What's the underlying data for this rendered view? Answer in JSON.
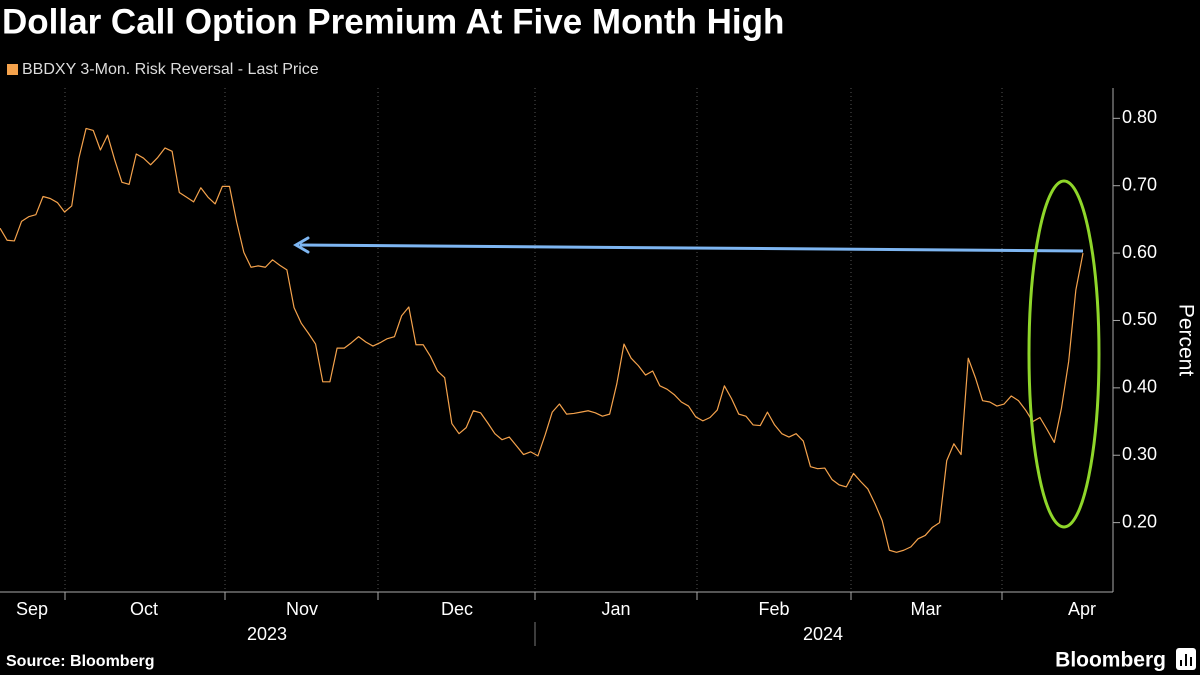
{
  "chart_data": {
    "type": "line",
    "title": "Dollar Call Option Premium At Five Month High",
    "series": [
      {
        "name": "BBDXY 3-Mon. Risk Reversal - Last Price",
        "color": "#f4a24c",
        "values": [
          0.637,
          0.619,
          0.618,
          0.647,
          0.654,
          0.657,
          0.684,
          0.681,
          0.675,
          0.661,
          0.67,
          0.741,
          0.785,
          0.782,
          0.753,
          0.775,
          0.738,
          0.705,
          0.702,
          0.747,
          0.741,
          0.731,
          0.742,
          0.756,
          0.751,
          0.69,
          0.683,
          0.676,
          0.697,
          0.683,
          0.673,
          0.699,
          0.699,
          0.646,
          0.601,
          0.579,
          0.581,
          0.579,
          0.59,
          0.582,
          0.575,
          0.519,
          0.496,
          0.481,
          0.465,
          0.409,
          0.409,
          0.459,
          0.459,
          0.467,
          0.476,
          0.468,
          0.462,
          0.467,
          0.473,
          0.476,
          0.507,
          0.52,
          0.464,
          0.464,
          0.447,
          0.425,
          0.415,
          0.347,
          0.332,
          0.341,
          0.366,
          0.363,
          0.348,
          0.332,
          0.323,
          0.327,
          0.314,
          0.301,
          0.305,
          0.299,
          0.33,
          0.364,
          0.376,
          0.361,
          0.362,
          0.364,
          0.366,
          0.363,
          0.358,
          0.361,
          0.406,
          0.465,
          0.444,
          0.433,
          0.419,
          0.425,
          0.403,
          0.398,
          0.39,
          0.379,
          0.373,
          0.357,
          0.351,
          0.356,
          0.367,
          0.403,
          0.384,
          0.361,
          0.358,
          0.345,
          0.344,
          0.364,
          0.345,
          0.332,
          0.327,
          0.332,
          0.321,
          0.283,
          0.28,
          0.281,
          0.264,
          0.256,
          0.253,
          0.273,
          0.261,
          0.25,
          0.228,
          0.203,
          0.159,
          0.156,
          0.159,
          0.164,
          0.176,
          0.181,
          0.193,
          0.2,
          0.292,
          0.317,
          0.301,
          0.444,
          0.415,
          0.381,
          0.379,
          0.373,
          0.376,
          0.388,
          0.381,
          0.367,
          0.35,
          0.356,
          0.338,
          0.319,
          0.37,
          0.439,
          0.545,
          0.6
        ]
      }
    ],
    "x_labels": [
      "Sep",
      "Oct",
      "Nov",
      "Dec",
      "Jan",
      "Feb",
      "Mar",
      "Apr"
    ],
    "years": [
      "2023",
      "2024"
    ],
    "y_label": "Percent",
    "ylim": [
      0.1,
      0.845
    ],
    "yticks": [
      {
        "value": 0.2,
        "label": "0.20"
      },
      {
        "value": 0.3,
        "label": "0.30"
      },
      {
        "value": 0.4,
        "label": "0.40"
      },
      {
        "value": 0.5,
        "label": "0.50"
      },
      {
        "value": 0.6,
        "label": "0.60"
      },
      {
        "value": 0.7,
        "label": "0.70"
      },
      {
        "value": 0.8,
        "label": "0.80"
      }
    ],
    "source": "Source: Bloomberg",
    "brand": "Bloomberg"
  }
}
